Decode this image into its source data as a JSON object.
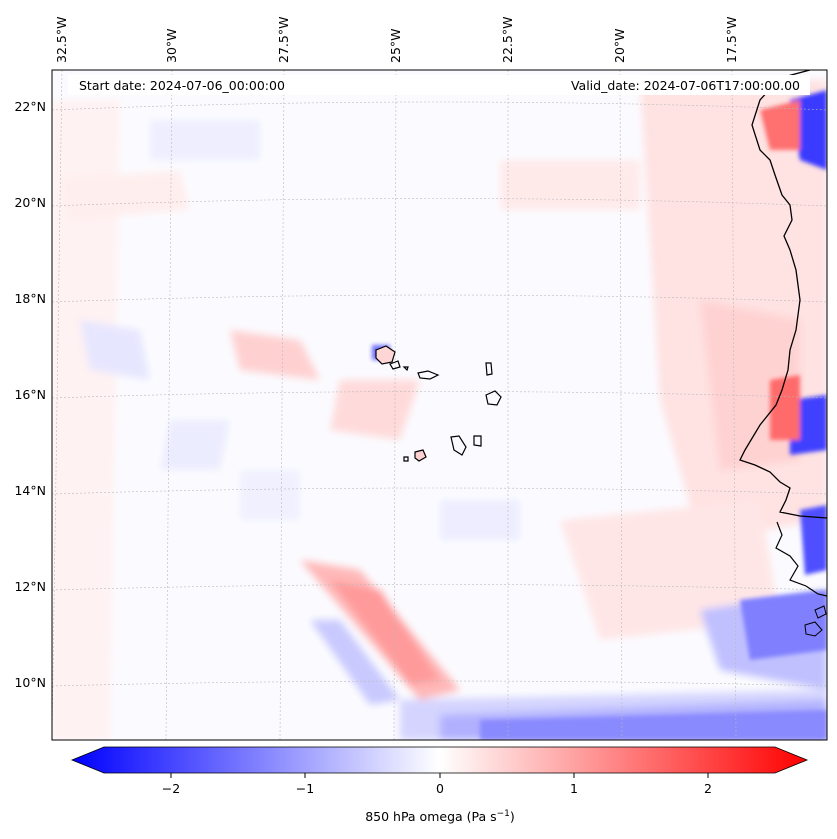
{
  "map": {
    "header": {
      "start_date": "Start date: 2024-07-06_00:00:00",
      "valid_date": "Valid_date: 2024-07-06T17:00:00.00"
    },
    "lon_labels": [
      "32.5°W",
      "30°W",
      "27.5°W",
      "25°W",
      "22.5°W",
      "20°W",
      "17.5°W"
    ],
    "lat_labels": [
      "22°N",
      "20°N",
      "18°N",
      "16°N",
      "14°N",
      "12°N",
      "10°N"
    ],
    "colorbar": {
      "ticks": [
        "−2",
        "−1",
        "0",
        "1",
        "2"
      ],
      "label_main": "850 hPa omega (Pa s",
      "label_sup": "−1",
      "label_close": ")",
      "range": [
        -2.5,
        2.5
      ],
      "colors": {
        "negative": "#0000ff",
        "zero": "#ffffff",
        "positive": "#ff0000"
      }
    }
  }
}
